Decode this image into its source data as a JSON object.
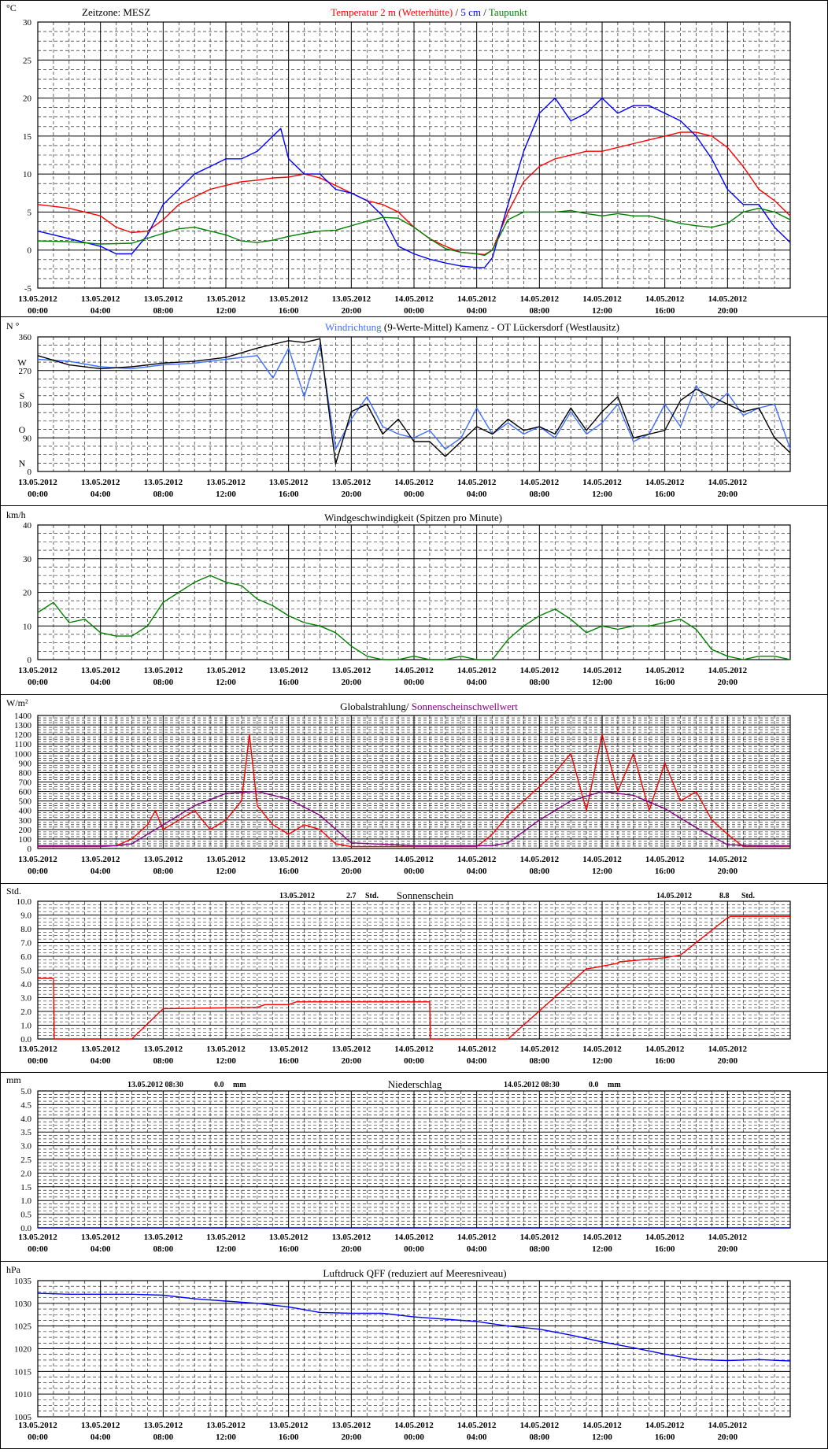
{
  "time_axis": {
    "dates": [
      "13.05.2012",
      "13.05.2012",
      "13.05.2012",
      "13.05.2012",
      "13.05.2012",
      "13.05.2012",
      "14.05.2012",
      "14.05.2012",
      "14.05.2012",
      "14.05.2012",
      "14.05.2012",
      "14.05.2012"
    ],
    "times": [
      "00:00",
      "04:00",
      "08:00",
      "12:00",
      "16:00",
      "20:00",
      "00:00",
      "04:00",
      "08:00",
      "12:00",
      "16:00",
      "20:00"
    ],
    "hours_total": 48
  },
  "colors": {
    "red": "#ff0000",
    "blue": "#0000ff",
    "green": "#008000",
    "windblue": "#3f6fff",
    "black": "#000000",
    "purple": "#800080",
    "grid": "#000000"
  },
  "chart_data": [
    {
      "id": "temp",
      "type": "line",
      "unit_label": "°C",
      "timezone_label": "Zeitzone: MESZ",
      "title_parts": [
        {
          "text": "Temperatur 2 m (Wetterhütte)",
          "color": "#ff0000"
        },
        {
          "text": "  /  ",
          "color": "#000000"
        },
        {
          "text": "5 cm",
          "color": "#0000ff"
        },
        {
          "text": " / ",
          "color": "#000000"
        },
        {
          "text": "Taupunkt",
          "color": "#008000"
        }
      ],
      "ylim": [
        -5,
        30
      ],
      "yticks": [
        30,
        25,
        20,
        15,
        10,
        5,
        0,
        -5
      ],
      "ytick_labels": [
        "30",
        "25",
        "20",
        "15",
        "10",
        "5",
        "0",
        "-5"
      ],
      "series": [
        {
          "color": "#ff0000",
          "x": [
            0,
            2,
            4,
            5,
            6,
            7,
            8,
            9,
            10,
            11,
            12,
            13,
            14,
            15,
            16,
            17,
            18,
            19,
            20,
            21,
            22,
            23,
            24,
            25,
            26,
            27,
            28,
            28.5,
            29,
            30,
            31,
            32,
            33,
            34,
            35,
            36,
            37,
            38,
            39,
            40,
            41,
            42,
            43,
            44,
            45,
            46,
            47,
            48
          ],
          "y": [
            6,
            5.5,
            4.5,
            3,
            2.3,
            2.5,
            4,
            6,
            7,
            8,
            8.5,
            9,
            9.2,
            9.5,
            9.6,
            10,
            9.5,
            8.5,
            7.5,
            6.5,
            6,
            5,
            3,
            1.5,
            0.5,
            -0.3,
            -0.5,
            -0.6,
            0,
            5,
            9,
            11,
            12,
            12.5,
            13,
            13,
            13.5,
            14,
            14.5,
            15,
            15.5,
            15.5,
            15,
            13.5,
            11,
            8,
            6.5,
            4.5
          ]
        },
        {
          "color": "#0000ff",
          "x": [
            0,
            2,
            4,
            5,
            6,
            7,
            8,
            9,
            10,
            11,
            12,
            13,
            14,
            15,
            15.5,
            16,
            17,
            18,
            19,
            20,
            21,
            22,
            23,
            24,
            25,
            26,
            27,
            28,
            28.5,
            29,
            30,
            31,
            32,
            33,
            34,
            35,
            36,
            37,
            38,
            39,
            40,
            41,
            42,
            43,
            44,
            45,
            46,
            47,
            48
          ],
          "y": [
            2.5,
            1.5,
            0.5,
            -0.5,
            -0.5,
            2,
            6,
            8,
            10,
            11,
            12,
            12,
            13,
            15,
            16,
            12,
            10,
            10,
            8,
            7.5,
            6.5,
            4.5,
            0.5,
            -0.5,
            -1.2,
            -1.7,
            -2.1,
            -2.3,
            -2.3,
            -1,
            6,
            13,
            18,
            20,
            17,
            18,
            20,
            18,
            19,
            19,
            18,
            17,
            15,
            12,
            8,
            6,
            6,
            3,
            1
          ]
        },
        {
          "color": "#008000",
          "x": [
            0,
            2,
            4,
            6,
            8,
            9,
            10,
            11,
            12,
            13,
            14,
            15,
            16,
            17,
            18,
            19,
            20,
            21,
            22,
            23,
            24,
            25,
            26,
            27,
            28,
            28.5,
            29,
            30,
            31,
            32,
            33,
            34,
            35,
            36,
            37,
            38,
            39,
            40,
            41,
            42,
            43,
            44,
            45,
            46,
            47,
            48
          ],
          "y": [
            1.2,
            1.1,
            0.8,
            0.9,
            2.2,
            2.8,
            3,
            2.5,
            2,
            1.2,
            1,
            1.3,
            1.8,
            2.2,
            2.5,
            2.6,
            3.2,
            3.8,
            4.3,
            4.2,
            3,
            1.5,
            0.2,
            -0.3,
            -0.5,
            -0.7,
            0,
            4,
            5,
            5,
            5,
            5.2,
            4.8,
            4.5,
            4.8,
            4.5,
            4.5,
            4,
            3.5,
            3.2,
            3,
            3.5,
            5,
            5.5,
            5,
            4
          ]
        }
      ]
    },
    {
      "id": "wdir",
      "type": "line",
      "unit_label": "N °",
      "title_parts": [
        {
          "text": "Windrichtung",
          "color": "#3f6fff"
        },
        {
          "text": " (9-Werte-Mittel)",
          "color": "#000000"
        },
        {
          "text": "       Kamenz - OT Lückersdorf (Westlausitz)",
          "color": "#000000"
        }
      ],
      "ylim": [
        0,
        360
      ],
      "yticks": [
        360,
        270,
        180,
        90,
        0
      ],
      "ytick_labels": [
        "360",
        "270",
        "180",
        "90",
        "0"
      ],
      "ytick_letters": [
        "W",
        "S",
        "O",
        "N"
      ],
      "ytick_letter_values": [
        292,
        202,
        112,
        22
      ],
      "series": [
        {
          "color": "#3f6fff",
          "x": [
            0,
            2,
            4,
            6,
            8,
            10,
            12,
            14,
            15,
            16,
            17,
            18,
            19,
            20,
            21,
            22,
            23,
            24,
            25,
            26,
            27,
            28,
            29,
            30,
            31,
            32,
            33,
            34,
            35,
            36,
            37,
            38,
            39,
            40,
            41,
            42,
            43,
            44,
            45,
            46,
            47,
            48
          ],
          "y": [
            300,
            295,
            280,
            275,
            285,
            290,
            300,
            310,
            250,
            330,
            200,
            340,
            60,
            140,
            200,
            120,
            100,
            90,
            110,
            60,
            90,
            170,
            100,
            130,
            100,
            120,
            90,
            160,
            100,
            130,
            180,
            80,
            100,
            180,
            120,
            230,
            170,
            210,
            150,
            170,
            180,
            60
          ]
        },
        {
          "color": "#000000",
          "x": [
            0,
            2,
            4,
            6,
            8,
            10,
            12,
            14,
            15,
            16,
            17,
            18,
            19,
            20,
            21,
            22,
            23,
            24,
            25,
            26,
            27,
            28,
            29,
            30,
            31,
            32,
            33,
            34,
            35,
            36,
            37,
            38,
            39,
            40,
            41,
            42,
            43,
            44,
            45,
            46,
            47,
            48
          ],
          "y": [
            310,
            285,
            275,
            280,
            290,
            295,
            305,
            330,
            340,
            350,
            345,
            355,
            20,
            160,
            180,
            100,
            140,
            80,
            80,
            40,
            80,
            120,
            100,
            140,
            110,
            120,
            100,
            170,
            110,
            160,
            200,
            90,
            100,
            110,
            190,
            220,
            200,
            180,
            160,
            170,
            90,
            50
          ]
        }
      ]
    },
    {
      "id": "wspd",
      "type": "line",
      "unit_label": "km/h",
      "title_parts": [
        {
          "text": "Windgeschwindigkeit (Spitzen pro Minute)",
          "color": "#000000"
        }
      ],
      "ylim": [
        0,
        40
      ],
      "yticks": [
        40,
        30,
        20,
        10,
        0
      ],
      "ytick_labels": [
        "40",
        "30",
        "20",
        "10",
        "0"
      ],
      "series": [
        {
          "color": "#008000",
          "x": [
            0,
            1,
            2,
            3,
            4,
            5,
            6,
            7,
            8,
            9,
            10,
            11,
            12,
            13,
            14,
            15,
            16,
            17,
            18,
            19,
            20,
            21,
            22,
            23,
            24,
            25,
            26,
            27,
            28,
            29,
            30,
            31,
            32,
            33,
            34,
            35,
            36,
            37,
            38,
            39,
            40,
            41,
            42,
            43,
            44,
            45,
            46,
            47,
            48
          ],
          "y": [
            14,
            17,
            11,
            12,
            8,
            7,
            7,
            10,
            17,
            20,
            23,
            25,
            23,
            22,
            18,
            16,
            13,
            11,
            10,
            8,
            4,
            1,
            0,
            0,
            1,
            0,
            0,
            1,
            0,
            0,
            6,
            10,
            13,
            15,
            12,
            8,
            10,
            9,
            10,
            10,
            11,
            12,
            9,
            3,
            1,
            0,
            1,
            1,
            0
          ]
        }
      ]
    },
    {
      "id": "glob",
      "type": "line",
      "unit_label": "W/m²",
      "title_parts": [
        {
          "text": "Globalstrahlung/ ",
          "color": "#000000"
        },
        {
          "text": "Sonnenscheinschwellwert",
          "color": "#800080"
        }
      ],
      "ylim": [
        0,
        1400
      ],
      "yticks": [
        1400,
        1300,
        1200,
        1100,
        1000,
        900,
        800,
        700,
        600,
        500,
        400,
        300,
        200,
        100,
        0
      ],
      "ytick_labels": [
        "1400",
        "1300",
        "1200",
        "1100",
        "1000",
        "900",
        "800",
        "700",
        "600",
        "500",
        "400",
        "300",
        "200",
        "100",
        "0"
      ],
      "series": [
        {
          "color": "#ff0000",
          "x": [
            0,
            4,
            5,
            6,
            7,
            7.5,
            8,
            9,
            10,
            11,
            12,
            13,
            13.5,
            14,
            15,
            16,
            17,
            18,
            19,
            20,
            24,
            28,
            29,
            30,
            31,
            32,
            33,
            34,
            35,
            36,
            37,
            38,
            39,
            40,
            41,
            42,
            43,
            44,
            45,
            46,
            47,
            48
          ],
          "y": [
            20,
            20,
            30,
            100,
            250,
            400,
            200,
            300,
            400,
            200,
            300,
            500,
            1200,
            450,
            250,
            150,
            250,
            200,
            50,
            20,
            20,
            20,
            150,
            350,
            500,
            650,
            800,
            1000,
            400,
            1200,
            600,
            1000,
            400,
            900,
            500,
            600,
            300,
            150,
            20,
            20,
            20,
            20
          ]
        },
        {
          "color": "#800080",
          "x": [
            0,
            5,
            6,
            8,
            10,
            12,
            14,
            16,
            18,
            20,
            24,
            29,
            30,
            32,
            34,
            36,
            38,
            40,
            42,
            44,
            46,
            48
          ],
          "y": [
            30,
            30,
            50,
            250,
            450,
            580,
            600,
            520,
            350,
            60,
            30,
            30,
            60,
            300,
            500,
            600,
            560,
            420,
            220,
            40,
            30,
            30
          ]
        }
      ]
    },
    {
      "id": "sun",
      "type": "line",
      "unit_label": "Std.",
      "title_parts": [
        {
          "text": "Sonnenschein",
          "color": "#000000"
        }
      ],
      "annotations": [
        {
          "date": "13.05.2012",
          "value": "2.7",
          "unit": "Std."
        },
        {
          "date": "14.05.2012",
          "value": "8.8",
          "unit": "Std."
        }
      ],
      "ylim": [
        0,
        10
      ],
      "yticks": [
        10,
        9,
        8,
        7,
        6,
        5,
        4,
        3,
        2,
        1,
        0
      ],
      "ytick_labels": [
        "10.0",
        "9.0",
        "8.0",
        "7.0",
        "6.0",
        "5.0",
        "4.0",
        "3.0",
        "2.0",
        "1.0",
        "0.0"
      ],
      "series": [
        {
          "color": "#ff0000",
          "x": [
            0,
            1,
            1.05,
            6,
            8,
            14,
            14.5,
            16,
            16.5,
            25,
            25.05,
            30,
            35,
            35.1,
            37,
            37.1,
            40,
            41,
            44,
            44.2,
            48
          ],
          "y": [
            4.4,
            4.4,
            0,
            0,
            2.2,
            2.3,
            2.5,
            2.5,
            2.7,
            2.7,
            0,
            0,
            5.1,
            5.1,
            5.5,
            5.6,
            5.9,
            6.1,
            8.8,
            8.9,
            8.9
          ]
        }
      ]
    },
    {
      "id": "rain",
      "type": "line",
      "unit_label": "mm",
      "title_parts": [
        {
          "text": "Niederschlag",
          "color": "#000000"
        }
      ],
      "annotations": [
        {
          "date": "13.05.2012 08:30",
          "value": "0.0",
          "unit": "mm"
        },
        {
          "date": "14.05.2012 08:30",
          "value": "0.0",
          "unit": "mm"
        }
      ],
      "ylim": [
        0,
        5
      ],
      "yticks": [
        5,
        4.5,
        4,
        3.5,
        3,
        2.5,
        2,
        1.5,
        1,
        0.5,
        0
      ],
      "ytick_labels": [
        "5.0",
        "4.5",
        "4.0",
        "3.5",
        "3.0",
        "2.5",
        "2.0",
        "1.5",
        "1.0",
        "0.5",
        "0.0"
      ],
      "series": [
        {
          "color": "#0000ff",
          "x": [
            0,
            48
          ],
          "y": [
            0,
            0
          ]
        }
      ]
    },
    {
      "id": "press",
      "type": "line",
      "unit_label": "hPa",
      "title_parts": [
        {
          "text": "Luftdruck QFF (reduziert auf Meeresniveau)",
          "color": "#000000"
        }
      ],
      "ylim": [
        1005,
        1035
      ],
      "yticks": [
        1035,
        1030,
        1025,
        1020,
        1015,
        1010,
        1005
      ],
      "ytick_labels": [
        "1035",
        "1030",
        "1025",
        "1020",
        "1015",
        "1010",
        "1005"
      ],
      "series": [
        {
          "color": "#0000ff",
          "x": [
            0,
            2,
            4,
            6,
            8,
            10,
            12,
            14,
            16,
            18,
            20,
            22,
            24,
            26,
            28,
            30,
            32,
            34,
            36,
            38,
            40,
            42,
            44,
            46,
            48
          ],
          "y": [
            1032.2,
            1032.0,
            1032.0,
            1032.0,
            1031.8,
            1031.0,
            1030.5,
            1030.0,
            1029.2,
            1028.0,
            1027.8,
            1027.8,
            1027.0,
            1026.5,
            1026.0,
            1025.0,
            1024.3,
            1023.0,
            1021.5,
            1020.2,
            1018.8,
            1017.6,
            1017.4,
            1017.6,
            1017.3
          ]
        }
      ]
    }
  ]
}
